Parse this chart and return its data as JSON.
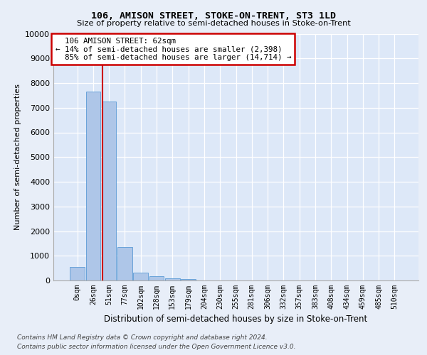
{
  "title1": "106, AMISON STREET, STOKE-ON-TRENT, ST3 1LD",
  "title2": "Size of property relative to semi-detached houses in Stoke-on-Trent",
  "xlabel": "Distribution of semi-detached houses by size in Stoke-on-Trent",
  "ylabel": "Number of semi-detached properties",
  "footnote1": "Contains HM Land Registry data © Crown copyright and database right 2024.",
  "footnote2": "Contains public sector information licensed under the Open Government Licence v3.0.",
  "bar_labels": [
    "0sqm",
    "26sqm",
    "51sqm",
    "77sqm",
    "102sqm",
    "128sqm",
    "153sqm",
    "179sqm",
    "204sqm",
    "230sqm",
    "255sqm",
    "281sqm",
    "306sqm",
    "332sqm",
    "357sqm",
    "383sqm",
    "408sqm",
    "434sqm",
    "459sqm",
    "485sqm",
    "510sqm"
  ],
  "bar_values": [
    560,
    7650,
    7250,
    1350,
    310,
    160,
    90,
    70,
    0,
    0,
    0,
    0,
    0,
    0,
    0,
    0,
    0,
    0,
    0,
    0,
    0
  ],
  "bar_color": "#aec6e8",
  "bar_edge_color": "#5b9bd5",
  "background_color": "#dde8f8",
  "grid_color": "#ffffff",
  "annotation_box_color": "#ffffff",
  "annotation_border_color": "#cc0000",
  "vline_color": "#cc0000",
  "property_label": "106 AMISON STREET: 62sqm",
  "pct_smaller": 14,
  "num_smaller": "2,398",
  "pct_larger": 85,
  "num_larger": "14,714",
  "ylim": [
    0,
    10000
  ],
  "yticks": [
    0,
    1000,
    2000,
    3000,
    4000,
    5000,
    6000,
    7000,
    8000,
    9000,
    10000
  ],
  "vline_pos": 1.57
}
